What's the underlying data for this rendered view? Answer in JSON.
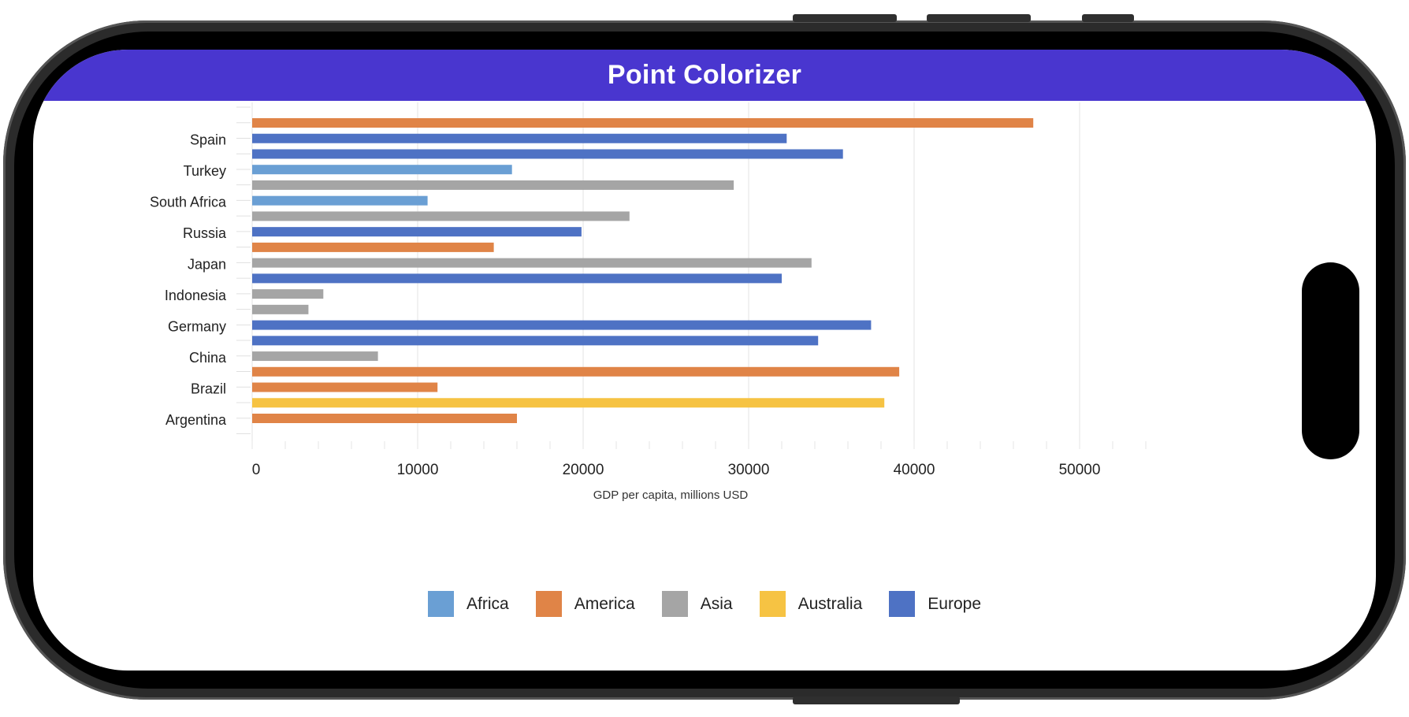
{
  "app": {
    "title": "Point Colorizer"
  },
  "chart_data": {
    "type": "bar",
    "orientation": "horizontal",
    "title": "",
    "xlabel": "GDP per capita, millions USD",
    "ylabel": "",
    "xlim": [
      0,
      55000
    ],
    "x_ticks": [
      0,
      10000,
      20000,
      30000,
      40000,
      50000
    ],
    "x_tick_labels": [
      "0",
      "10000",
      "20000",
      "30000",
      "40000",
      "50000"
    ],
    "grid": true,
    "legend_position": "bottom",
    "category_labels": [
      "Spain",
      "Turkey",
      "South Africa",
      "Russia",
      "Japan",
      "Indonesia",
      "Germany",
      "China",
      "Brazil",
      "Argentina"
    ],
    "colors": {
      "Africa": "#6a9fd4",
      "America": "#e08447",
      "Asia": "#a5a5a5",
      "Australia": "#f6c343",
      "Europe": "#4e72c4"
    },
    "legend": [
      "Africa",
      "America",
      "Asia",
      "Australia",
      "Europe"
    ],
    "bars": [
      {
        "value": 47200,
        "region": "America"
      },
      {
        "value": 32300,
        "region": "Europe"
      },
      {
        "value": 35700,
        "region": "Europe"
      },
      {
        "value": 15700,
        "region": "Africa"
      },
      {
        "value": 29100,
        "region": "Asia"
      },
      {
        "value": 10600,
        "region": "Africa"
      },
      {
        "value": 22800,
        "region": "Asia"
      },
      {
        "value": 19900,
        "region": "Europe"
      },
      {
        "value": 14600,
        "region": "America"
      },
      {
        "value": 33800,
        "region": "Asia"
      },
      {
        "value": 32000,
        "region": "Europe"
      },
      {
        "value": 4300,
        "region": "Asia"
      },
      {
        "value": 3400,
        "region": "Asia"
      },
      {
        "value": 37400,
        "region": "Europe"
      },
      {
        "value": 34200,
        "region": "Europe"
      },
      {
        "value": 7600,
        "region": "Asia"
      },
      {
        "value": 39100,
        "region": "America"
      },
      {
        "value": 11200,
        "region": "America"
      },
      {
        "value": 38200,
        "region": "Australia"
      },
      {
        "value": 16000,
        "region": "America"
      }
    ]
  }
}
